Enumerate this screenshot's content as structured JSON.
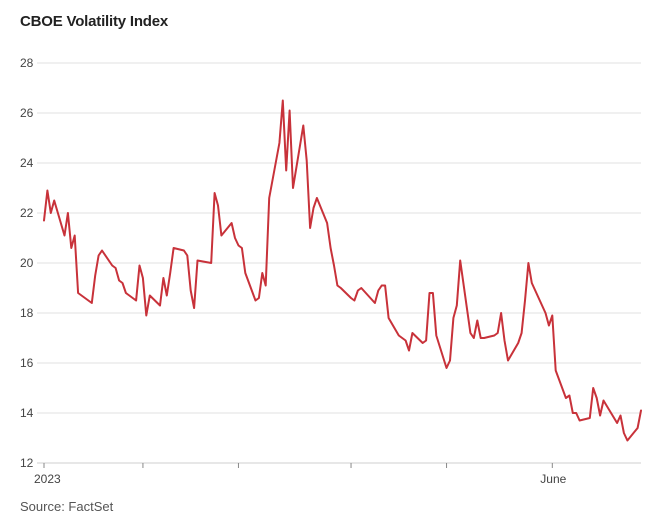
{
  "title": "CBOE Volatility Index",
  "source": "Source: FactSet",
  "colors": {
    "line": "#c8323a",
    "grid": "#e2e2e2",
    "text": "#444444"
  },
  "chart_data": {
    "type": "line",
    "title": "CBOE Volatility Index",
    "ylim": [
      12,
      28
    ],
    "yticks": [
      12,
      14,
      16,
      18,
      20,
      22,
      24,
      26,
      28
    ],
    "grid": true,
    "x_ticks": [
      {
        "date": "2023-01-03",
        "label": "2023"
      },
      {
        "date": "2023-02-01",
        "label": ""
      },
      {
        "date": "2023-03-01",
        "label": ""
      },
      {
        "date": "2023-04-03",
        "label": ""
      },
      {
        "date": "2023-05-01",
        "label": ""
      },
      {
        "date": "2023-06-01",
        "label": "June"
      }
    ],
    "series": [
      {
        "values": [
          [
            "2023-01-03",
            21.7
          ],
          [
            "2023-01-04",
            22.9
          ],
          [
            "2023-01-05",
            22.0
          ],
          [
            "2023-01-06",
            22.5
          ],
          [
            "2023-01-09",
            21.1
          ],
          [
            "2023-01-10",
            22.0
          ],
          [
            "2023-01-11",
            20.6
          ],
          [
            "2023-01-12",
            21.1
          ],
          [
            "2023-01-13",
            18.8
          ],
          [
            "2023-01-17",
            18.4
          ],
          [
            "2023-01-18",
            19.5
          ],
          [
            "2023-01-19",
            20.3
          ],
          [
            "2023-01-20",
            20.5
          ],
          [
            "2023-01-23",
            19.9
          ],
          [
            "2023-01-24",
            19.8
          ],
          [
            "2023-01-25",
            19.3
          ],
          [
            "2023-01-26",
            19.2
          ],
          [
            "2023-01-27",
            18.8
          ],
          [
            "2023-01-30",
            18.5
          ],
          [
            "2023-01-31",
            19.9
          ],
          [
            "2023-02-01",
            19.4
          ],
          [
            "2023-02-02",
            17.9
          ],
          [
            "2023-02-03",
            18.7
          ],
          [
            "2023-02-06",
            18.3
          ],
          [
            "2023-02-07",
            19.4
          ],
          [
            "2023-02-08",
            18.7
          ],
          [
            "2023-02-09",
            19.6
          ],
          [
            "2023-02-10",
            20.6
          ],
          [
            "2023-02-13",
            20.5
          ],
          [
            "2023-02-14",
            20.3
          ],
          [
            "2023-02-15",
            18.9
          ],
          [
            "2023-02-16",
            18.2
          ],
          [
            "2023-02-17",
            20.1
          ],
          [
            "2023-02-21",
            20.0
          ],
          [
            "2023-02-22",
            22.8
          ],
          [
            "2023-02-23",
            22.3
          ],
          [
            "2023-02-24",
            21.1
          ],
          [
            "2023-02-27",
            21.6
          ],
          [
            "2023-02-28",
            21.0
          ],
          [
            "2023-03-01",
            20.7
          ],
          [
            "2023-03-02",
            20.6
          ],
          [
            "2023-03-03",
            19.6
          ],
          [
            "2023-03-06",
            18.5
          ],
          [
            "2023-03-07",
            18.6
          ],
          [
            "2023-03-08",
            19.6
          ],
          [
            "2023-03-09",
            19.1
          ],
          [
            "2023-03-10",
            22.6
          ],
          [
            "2023-03-13",
            24.8
          ],
          [
            "2023-03-14",
            26.5
          ],
          [
            "2023-03-15",
            23.7
          ],
          [
            "2023-03-16",
            26.1
          ],
          [
            "2023-03-17",
            23.0
          ],
          [
            "2023-03-20",
            25.5
          ],
          [
            "2023-03-21",
            24.1
          ],
          [
            "2023-03-22",
            21.4
          ],
          [
            "2023-03-23",
            22.2
          ],
          [
            "2023-03-24",
            22.6
          ],
          [
            "2023-03-27",
            21.6
          ],
          [
            "2023-03-28",
            20.6
          ],
          [
            "2023-03-29",
            19.9
          ],
          [
            "2023-03-30",
            19.1
          ],
          [
            "2023-03-31",
            19.0
          ],
          [
            "2023-04-03",
            18.6
          ],
          [
            "2023-04-04",
            18.5
          ],
          [
            "2023-04-05",
            18.9
          ],
          [
            "2023-04-06",
            19.0
          ],
          [
            "2023-04-10",
            18.4
          ],
          [
            "2023-04-11",
            18.9
          ],
          [
            "2023-04-12",
            19.1
          ],
          [
            "2023-04-13",
            19.1
          ],
          [
            "2023-04-14",
            17.8
          ],
          [
            "2023-04-17",
            17.1
          ],
          [
            "2023-04-18",
            17.0
          ],
          [
            "2023-04-19",
            16.9
          ],
          [
            "2023-04-20",
            16.5
          ],
          [
            "2023-04-21",
            17.2
          ],
          [
            "2023-04-24",
            16.8
          ],
          [
            "2023-04-25",
            16.9
          ],
          [
            "2023-04-26",
            18.8
          ],
          [
            "2023-04-27",
            18.8
          ],
          [
            "2023-04-28",
            17.1
          ],
          [
            "2023-05-01",
            15.8
          ],
          [
            "2023-05-02",
            16.1
          ],
          [
            "2023-05-03",
            17.8
          ],
          [
            "2023-05-04",
            18.3
          ],
          [
            "2023-05-05",
            20.1
          ],
          [
            "2023-05-08",
            17.2
          ],
          [
            "2023-05-09",
            17.0
          ],
          [
            "2023-05-10",
            17.7
          ],
          [
            "2023-05-11",
            17.0
          ],
          [
            "2023-05-12",
            17.0
          ],
          [
            "2023-05-15",
            17.1
          ],
          [
            "2023-05-16",
            17.2
          ],
          [
            "2023-05-17",
            18.0
          ],
          [
            "2023-05-18",
            16.9
          ],
          [
            "2023-05-19",
            16.1
          ],
          [
            "2023-05-22",
            16.8
          ],
          [
            "2023-05-23",
            17.2
          ],
          [
            "2023-05-24",
            18.5
          ],
          [
            "2023-05-25",
            20.0
          ],
          [
            "2023-05-26",
            19.2
          ],
          [
            "2023-05-30",
            18.0
          ],
          [
            "2023-05-31",
            17.5
          ],
          [
            "2023-06-01",
            17.9
          ],
          [
            "2023-06-02",
            15.7
          ],
          [
            "2023-06-05",
            14.6
          ],
          [
            "2023-06-06",
            14.7
          ],
          [
            "2023-06-07",
            14.0
          ],
          [
            "2023-06-08",
            14.0
          ],
          [
            "2023-06-09",
            13.7
          ],
          [
            "2023-06-12",
            13.8
          ],
          [
            "2023-06-13",
            15.0
          ],
          [
            "2023-06-14",
            14.6
          ],
          [
            "2023-06-15",
            13.9
          ],
          [
            "2023-06-16",
            14.5
          ],
          [
            "2023-06-20",
            13.6
          ],
          [
            "2023-06-21",
            13.9
          ],
          [
            "2023-06-22",
            13.2
          ],
          [
            "2023-06-23",
            12.9
          ],
          [
            "2023-06-26",
            13.4
          ],
          [
            "2023-06-27",
            14.1
          ]
        ]
      }
    ]
  }
}
